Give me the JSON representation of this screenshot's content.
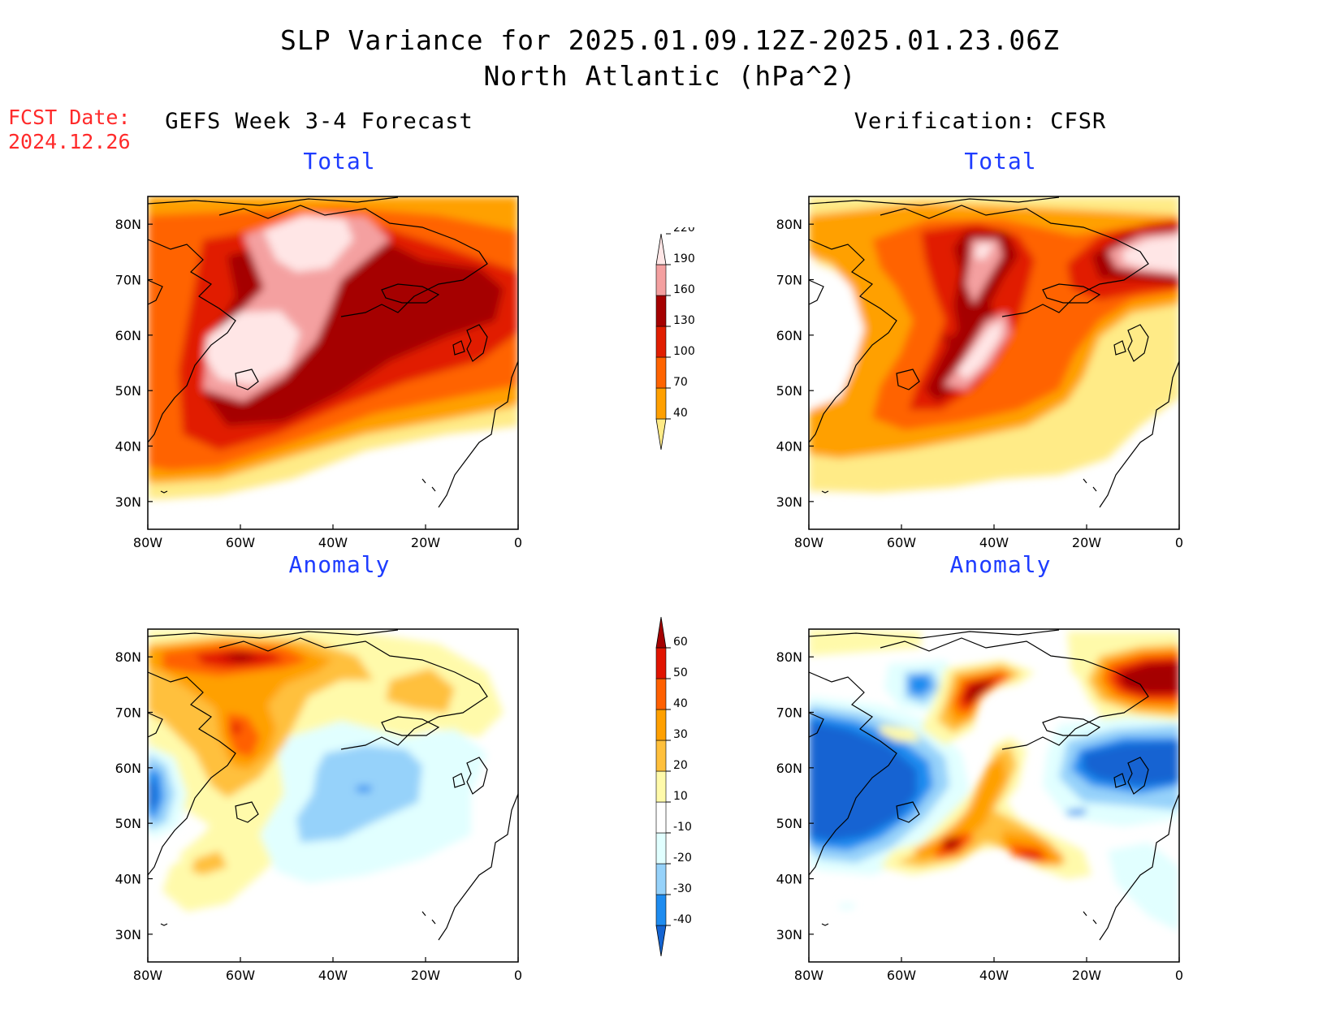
{
  "header": {
    "title_line1": "SLP Variance for 2025.01.09.12Z-2025.01.23.06Z",
    "title_line2": "North Atlantic (hPa^2)"
  },
  "forecast_date": {
    "label": "FCST Date:",
    "value": "2024.12.26"
  },
  "columns": {
    "left_title": "GEFS Week 3-4 Forecast",
    "right_title": "Verification: CFSR"
  },
  "panels": {
    "top_left_subtitle": "Total",
    "top_right_subtitle": "Total",
    "bottom_left_subtitle": "Anomaly",
    "bottom_right_subtitle": "Anomaly"
  },
  "axes": {
    "lon_labels": [
      "80W",
      "60W",
      "40W",
      "20W",
      "0"
    ],
    "lat_labels": [
      "30N",
      "40N",
      "50N",
      "60N",
      "70N",
      "80N"
    ],
    "lon_range": [
      -80,
      0
    ],
    "lat_range": [
      25,
      85
    ]
  },
  "total_colorbar": {
    "labels": [
      "40",
      "70",
      "100",
      "130",
      "160",
      "190",
      "220"
    ],
    "colors": [
      "#ffeb87",
      "#ffa000",
      "#ff6400",
      "#e11e00",
      "#a50000",
      "#f4a0a0",
      "#ffe6e6"
    ]
  },
  "anomaly_colorbar": {
    "labels": [
      "-40",
      "-30",
      "-20",
      "-10",
      "10",
      "20",
      "30",
      "40",
      "50",
      "60"
    ],
    "colors": [
      "#1464d2",
      "#1e8cf0",
      "#96d2fa",
      "#e1ffff",
      "#ffffff",
      "#fffaaa",
      "#ffc03c",
      "#ffa000",
      "#ff6000",
      "#e11400",
      "#a50000"
    ]
  }
}
